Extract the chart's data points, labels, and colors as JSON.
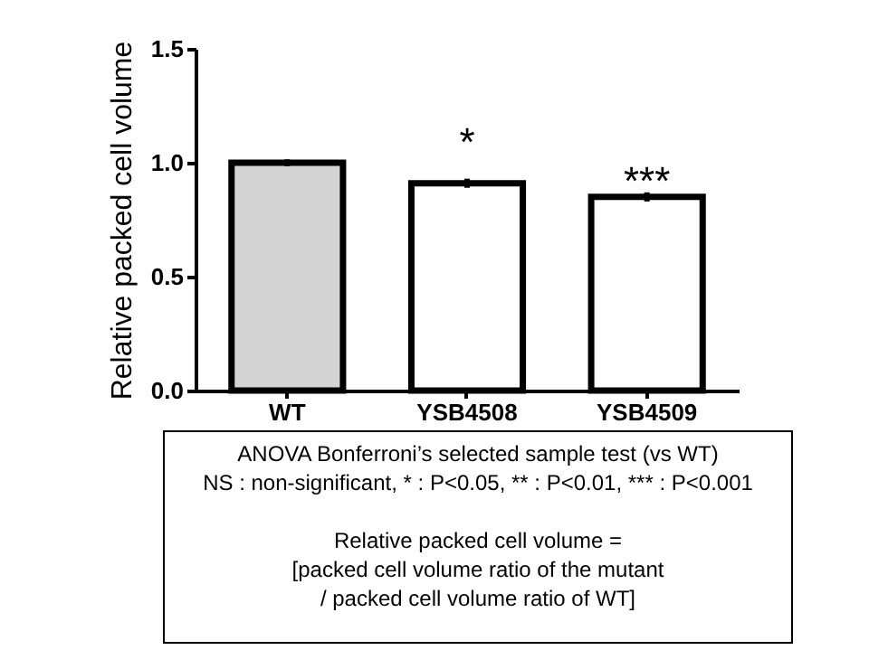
{
  "chart_data": {
    "type": "bar",
    "ylabel": "Relative packed cell volume",
    "categories": [
      "WT",
      "YSB4508",
      "YSB4509"
    ],
    "values": [
      1.0,
      0.91,
      0.85
    ],
    "errors": [
      0.015,
      0.02,
      0.02
    ],
    "colors": [
      "#d3d3d3",
      "#ffffff",
      "#ffffff"
    ],
    "ylim": [
      0,
      1.5
    ],
    "yticks": [
      {
        "value": 0,
        "label": "0.0"
      },
      {
        "value": 0.5,
        "label": "0.5"
      },
      {
        "value": 1,
        "label": "1.0"
      },
      {
        "value": 1.5,
        "label": "1.5"
      }
    ],
    "grid": false,
    "legend": false,
    "annotations": [
      "*",
      "***",
      "ANOVA Bonferroni’s selected sample test (vs WT)",
      "NS : non-significant, * : P<0.05, ** : P<0.01, *** : P<0.001",
      "Relative packed cell volume =",
      "[packed cell volume ratio of the mutant",
      "/ packed cell volume ratio of WT]"
    ]
  }
}
